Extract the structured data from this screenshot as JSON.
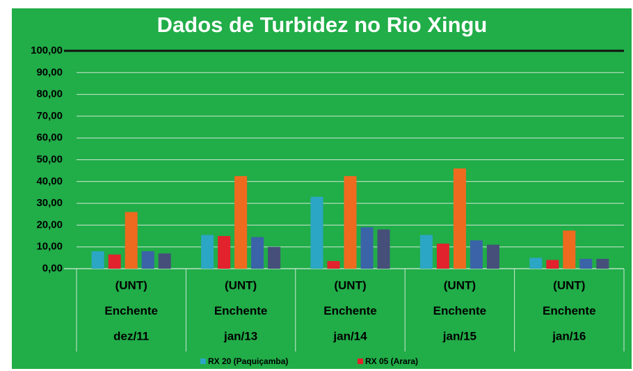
{
  "chart_data": {
    "type": "bar",
    "title": "Dados de Turbidez no Rio Xingu",
    "categories": [
      [
        "(UNT)",
        "Enchente",
        "dez/11"
      ],
      [
        "(UNT)",
        "Enchente",
        "jan/13"
      ],
      [
        "(UNT)",
        "Enchente",
        "jan/14"
      ],
      [
        "(UNT)",
        "Enchente",
        "jan/15"
      ],
      [
        "(UNT)",
        "Enchente",
        "jan/16"
      ]
    ],
    "series": [
      {
        "name": "RX 20 (Paquiçamba)",
        "color": "#2ba6c4",
        "values": [
          8,
          15.5,
          33,
          15.5,
          5
        ]
      },
      {
        "name": "RX 05 (Arara)",
        "color": "#e2222c",
        "values": [
          6.5,
          15,
          3.5,
          11.5,
          4
        ]
      },
      {
        "color": "#ee6a1f",
        "values": [
          26,
          42.5,
          42.5,
          46,
          17.5
        ]
      },
      {
        "color": "#3b63a8",
        "values": [
          8,
          14.5,
          19,
          13,
          4.5
        ]
      },
      {
        "color": "#464f7a",
        "values": [
          7,
          10,
          18,
          11,
          4.5
        ]
      }
    ],
    "ylim": [
      0,
      100
    ],
    "yticks": [
      {
        "value": 0,
        "label": "0,00"
      },
      {
        "value": 10,
        "label": "10,00"
      },
      {
        "value": 20,
        "label": "20,00"
      },
      {
        "value": 30,
        "label": "30,00"
      },
      {
        "value": 40,
        "label": "40,00"
      },
      {
        "value": 50,
        "label": "50,00"
      },
      {
        "value": 60,
        "label": "60,00"
      },
      {
        "value": 70,
        "label": "70,00"
      },
      {
        "value": 80,
        "label": "80,00"
      },
      {
        "value": 90,
        "label": "90,00"
      },
      {
        "value": 100,
        "label": "100,00"
      }
    ],
    "grid": true,
    "legend": "bottom"
  }
}
